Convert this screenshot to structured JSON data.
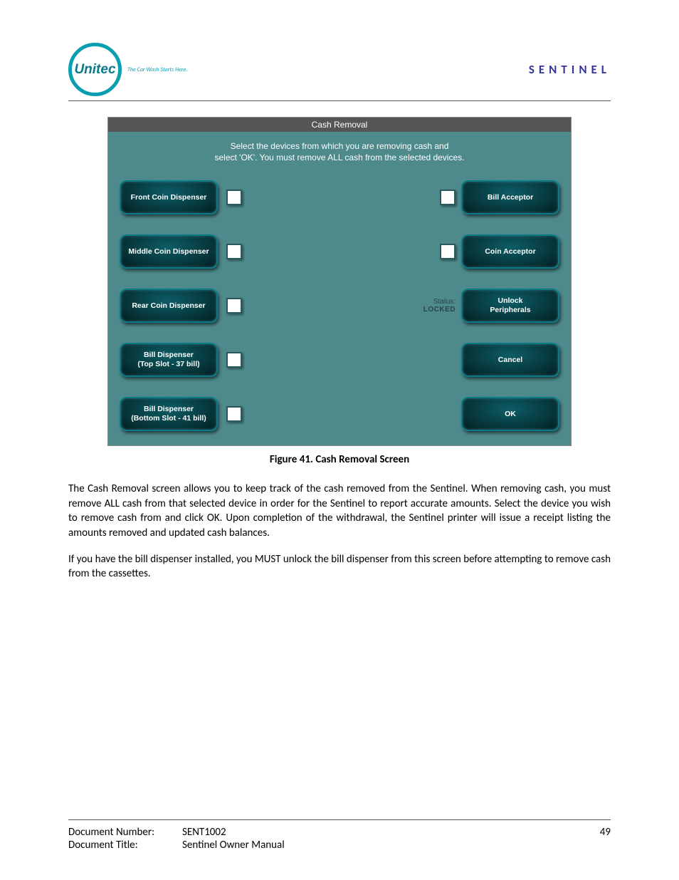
{
  "header": {
    "logo_text": "Unitec",
    "tagline": "The Car Wash Starts Here.",
    "brand": "SENTINEL"
  },
  "screenshot": {
    "title": "Cash Removal",
    "instruction_line1": "Select the devices from which you are removing cash and",
    "instruction_line2": "select 'OK'.  You must remove ALL cash from the selected devices.",
    "left_buttons": [
      "Front Coin Dispenser",
      "Middle Coin Dispenser",
      "Rear Coin Dispenser",
      "Bill Dispenser\n(Top Slot - 37 bill)",
      "Bill Dispenser\n(Bottom Slot - 41 bill)"
    ],
    "right_buttons": [
      {
        "label": "Bill Acceptor",
        "has_checkbox": true
      },
      {
        "label": "Coin Acceptor",
        "has_checkbox": true
      },
      {
        "label": "Unlock\nPeripherals",
        "has_checkbox": false,
        "status": {
          "line1": "Status:",
          "line2": "LOCKED"
        }
      },
      {
        "label": "Cancel",
        "has_checkbox": false
      },
      {
        "label": "OK",
        "has_checkbox": false
      }
    ],
    "colors": {
      "titlebar_bg": "#555555",
      "body_bg": "#4e8a8c",
      "button_border": "#0a7a88",
      "button_gradient_inner": "#0d5d66",
      "button_gradient_outer": "#021b1e",
      "checkbox_bg": "#ffffff"
    }
  },
  "figure_caption": "Figure 41. Cash Removal Screen",
  "paragraphs": [
    "The Cash Removal screen allows you to keep track of the cash removed from the Sentinel. When removing cash, you must remove ALL cash from that selected device in order for the Sentinel to report accurate amounts. Select the device you wish to remove cash from and click OK. Upon completion of the withdrawal, the Sentinel printer will issue a receipt listing the amounts removed and updated cash balances.",
    "If you have the bill dispenser installed, you MUST unlock the bill dispenser from this screen before attempting to remove cash from the cassettes."
  ],
  "footer": {
    "doc_number_label": "Document Number:",
    "doc_number": "SENT1002",
    "doc_title_label": "Document Title:",
    "doc_title": "Sentinel Owner Manual",
    "page_number": "49"
  }
}
